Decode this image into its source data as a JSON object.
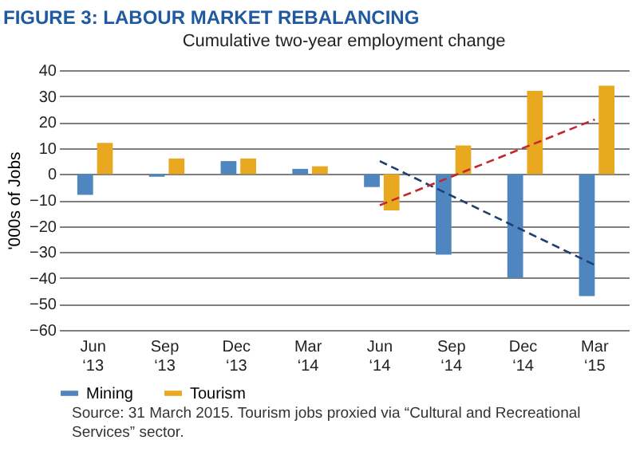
{
  "chart_data": {
    "type": "bar",
    "title": "FIGURE 3: LABOUR MARKET REBALANCING",
    "subtitle": "Cumulative two-year employment change",
    "ylabel": "'000s of Jobs",
    "categories": [
      "Jun ‘13",
      "Sep ‘13",
      "Dec ‘13",
      "Mar ‘14",
      "Jun ‘14",
      "Sep ‘14",
      "Dec ‘14",
      "Mar ‘15"
    ],
    "series": [
      {
        "name": "Mining",
        "color": "#4f86c0",
        "values": [
          -8,
          -1,
          5,
          2,
          -5,
          -31,
          -40,
          -47
        ]
      },
      {
        "name": "Tourism",
        "color": "#e8a820",
        "values": [
          12,
          6,
          6,
          3,
          -14,
          11,
          32,
          34
        ]
      },
      {
        "type": "line",
        "color": "#1f3f6e",
        "line_style": "dashed",
        "x": [
          "Jun ‘14",
          "Mar ‘15"
        ],
        "values": [
          5,
          -35
        ]
      },
      {
        "type": "line",
        "color": "#c0282d",
        "line_style": "dashed",
        "x": [
          "Jun ‘14",
          "Mar ‘15"
        ],
        "values": [
          -12,
          21
        ]
      }
    ],
    "ylim": [
      -60,
      40
    ],
    "yticks": [
      -60,
      -50,
      -40,
      -30,
      -20,
      -10,
      0,
      10,
      20,
      30,
      40
    ],
    "grid": "y",
    "legend": "bottom",
    "annotations": [
      "Source: 31 March 2015. Tourism jobs proxied via “Cultural and Recreational Services” sector."
    ]
  }
}
